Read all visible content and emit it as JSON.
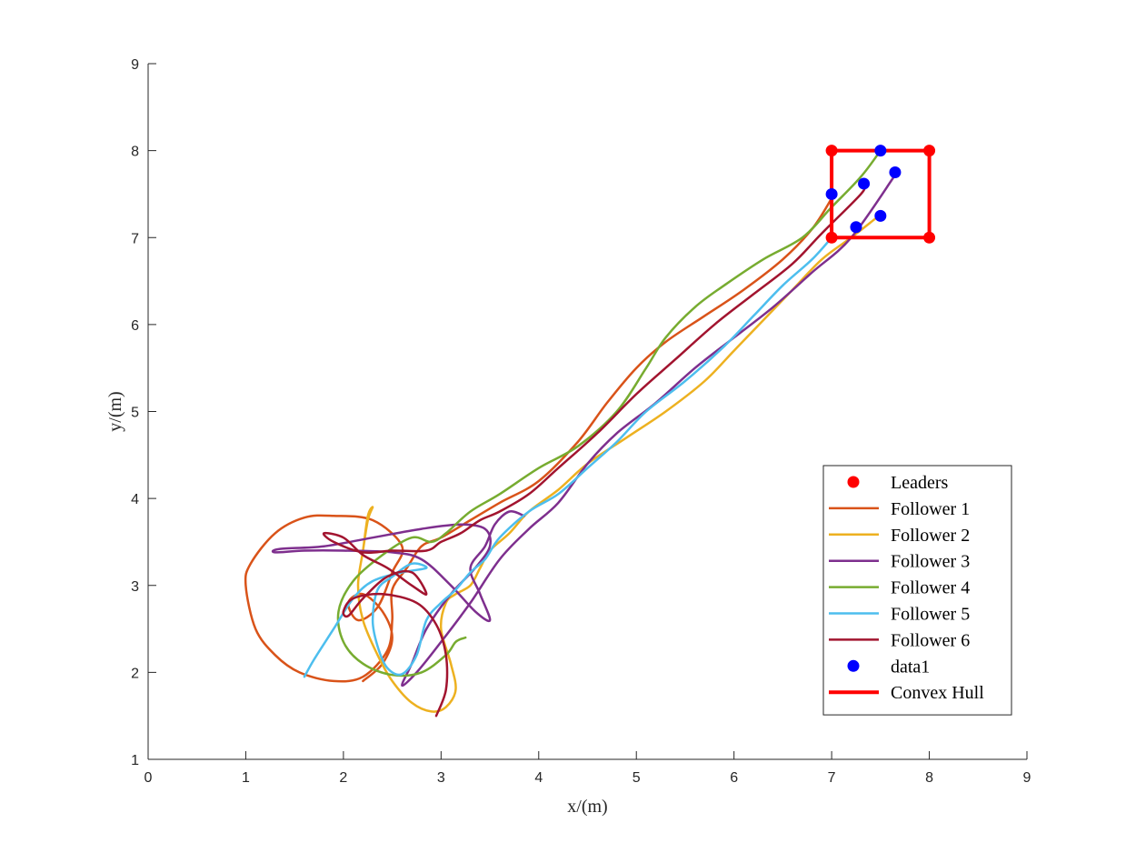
{
  "chart_data": {
    "type": "line",
    "title": "",
    "xlabel": "x/(m)",
    "ylabel": "y/(m)",
    "xlim": [
      0,
      9
    ],
    "ylim": [
      1,
      9
    ],
    "xticks": [
      "0",
      "1",
      "2",
      "3",
      "4",
      "5",
      "6",
      "7",
      "8",
      "9"
    ],
    "yticks": [
      "1",
      "2",
      "3",
      "4",
      "5",
      "6",
      "7",
      "8",
      "9"
    ],
    "grid": false,
    "legend_position": "bottom-right",
    "legend": [
      "Leaders",
      "Follower 1",
      "Follower 2",
      "Follower 3",
      "Follower 4",
      "Follower 5",
      "Follower 6",
      "data1",
      "Convex Hull"
    ],
    "leaders": {
      "name": "Leaders",
      "color": "#ff0000",
      "points": [
        [
          7,
          8
        ],
        [
          8,
          8
        ],
        [
          7,
          7
        ],
        [
          8,
          7
        ]
      ]
    },
    "data1": {
      "name": "data1",
      "color": "#0000ff",
      "points": [
        [
          7.5,
          8.0
        ],
        [
          7.65,
          7.75
        ],
        [
          7.33,
          7.62
        ],
        [
          7.0,
          7.5
        ],
        [
          7.5,
          7.25
        ],
        [
          7.25,
          7.12
        ]
      ]
    },
    "convex_hull": {
      "name": "Convex Hull",
      "color": "#ff0000",
      "points": [
        [
          7,
          7
        ],
        [
          8,
          7
        ],
        [
          8,
          8
        ],
        [
          7,
          8
        ],
        [
          7,
          7
        ]
      ]
    },
    "series": [
      {
        "name": "Follower 1",
        "color": "#d95319",
        "points": [
          [
            2.2,
            1.9
          ],
          [
            2.4,
            2.1
          ],
          [
            2.5,
            2.4
          ],
          [
            2.4,
            2.7
          ],
          [
            2.2,
            2.9
          ],
          [
            2.05,
            2.8
          ],
          [
            2.15,
            2.6
          ],
          [
            2.35,
            2.75
          ],
          [
            2.5,
            3.15
          ],
          [
            2.6,
            3.45
          ],
          [
            2.3,
            3.75
          ],
          [
            1.9,
            3.8
          ],
          [
            1.6,
            3.78
          ],
          [
            1.3,
            3.6
          ],
          [
            1.05,
            3.25
          ],
          [
            1.0,
            3.0
          ],
          [
            1.1,
            2.5
          ],
          [
            1.3,
            2.2
          ],
          [
            1.55,
            2.0
          ],
          [
            1.9,
            1.9
          ],
          [
            2.2,
            1.95
          ],
          [
            2.45,
            2.25
          ],
          [
            2.5,
            2.6
          ],
          [
            2.5,
            2.95
          ],
          [
            2.65,
            3.2
          ],
          [
            2.8,
            3.45
          ],
          [
            3.0,
            3.55
          ],
          [
            3.3,
            3.75
          ],
          [
            3.6,
            3.95
          ],
          [
            4.0,
            4.2
          ],
          [
            4.4,
            4.65
          ],
          [
            4.7,
            5.1
          ],
          [
            5.0,
            5.5
          ],
          [
            5.3,
            5.8
          ],
          [
            5.7,
            6.1
          ],
          [
            6.1,
            6.4
          ],
          [
            6.5,
            6.75
          ],
          [
            6.8,
            7.1
          ],
          [
            7.0,
            7.45
          ]
        ]
      },
      {
        "name": "Follower 2",
        "color": "#edb120",
        "points": [
          [
            2.2,
            3.4
          ],
          [
            2.25,
            3.75
          ],
          [
            2.3,
            3.9
          ],
          [
            2.25,
            3.8
          ],
          [
            2.2,
            3.4
          ],
          [
            2.15,
            3.0
          ],
          [
            2.2,
            2.6
          ],
          [
            2.35,
            2.2
          ],
          [
            2.5,
            1.9
          ],
          [
            2.7,
            1.65
          ],
          [
            2.9,
            1.55
          ],
          [
            3.05,
            1.6
          ],
          [
            3.15,
            1.8
          ],
          [
            3.1,
            2.1
          ],
          [
            3.0,
            2.5
          ],
          [
            3.05,
            2.8
          ],
          [
            3.15,
            2.9
          ],
          [
            3.3,
            3.0
          ],
          [
            3.4,
            3.2
          ],
          [
            3.5,
            3.4
          ],
          [
            3.7,
            3.6
          ],
          [
            3.9,
            3.85
          ],
          [
            4.2,
            4.1
          ],
          [
            4.5,
            4.4
          ],
          [
            4.9,
            4.7
          ],
          [
            5.3,
            5.0
          ],
          [
            5.7,
            5.35
          ],
          [
            6.0,
            5.7
          ],
          [
            6.3,
            6.05
          ],
          [
            6.6,
            6.4
          ],
          [
            6.9,
            6.75
          ],
          [
            7.2,
            7.0
          ],
          [
            7.45,
            7.22
          ]
        ]
      },
      {
        "name": "Follower 3",
        "color": "#7e2f8e",
        "points": [
          [
            3.85,
            3.8
          ],
          [
            3.7,
            3.85
          ],
          [
            3.55,
            3.7
          ],
          [
            3.45,
            3.45
          ],
          [
            3.3,
            3.2
          ],
          [
            3.4,
            2.9
          ],
          [
            3.5,
            2.6
          ],
          [
            3.35,
            2.7
          ],
          [
            3.1,
            3.0
          ],
          [
            2.8,
            3.3
          ],
          [
            2.5,
            3.38
          ],
          [
            2.0,
            3.4
          ],
          [
            1.6,
            3.4
          ],
          [
            1.3,
            3.38
          ],
          [
            1.35,
            3.42
          ],
          [
            1.8,
            3.45
          ],
          [
            2.3,
            3.55
          ],
          [
            2.8,
            3.65
          ],
          [
            3.2,
            3.7
          ],
          [
            3.45,
            3.65
          ],
          [
            3.5,
            3.45
          ],
          [
            3.35,
            3.2
          ],
          [
            3.1,
            2.9
          ],
          [
            2.85,
            2.5
          ],
          [
            2.7,
            2.1
          ],
          [
            2.6,
            1.85
          ],
          [
            2.75,
            2.0
          ],
          [
            3.0,
            2.35
          ],
          [
            3.3,
            2.8
          ],
          [
            3.6,
            3.3
          ],
          [
            3.9,
            3.65
          ],
          [
            4.2,
            3.95
          ],
          [
            4.5,
            4.4
          ],
          [
            4.8,
            4.75
          ],
          [
            5.2,
            5.1
          ],
          [
            5.6,
            5.5
          ],
          [
            6.0,
            5.85
          ],
          [
            6.4,
            6.2
          ],
          [
            6.8,
            6.6
          ],
          [
            7.2,
            7.0
          ],
          [
            7.65,
            7.72
          ]
        ]
      },
      {
        "name": "Follower 4",
        "color": "#77ac30",
        "points": [
          [
            3.25,
            2.4
          ],
          [
            3.15,
            2.35
          ],
          [
            3.05,
            2.2
          ],
          [
            2.8,
            2.0
          ],
          [
            2.5,
            1.97
          ],
          [
            2.2,
            2.1
          ],
          [
            2.0,
            2.35
          ],
          [
            1.95,
            2.7
          ],
          [
            2.1,
            3.05
          ],
          [
            2.4,
            3.35
          ],
          [
            2.7,
            3.55
          ],
          [
            2.9,
            3.5
          ],
          [
            3.05,
            3.6
          ],
          [
            3.3,
            3.85
          ],
          [
            3.6,
            4.05
          ],
          [
            4.0,
            4.35
          ],
          [
            4.4,
            4.6
          ],
          [
            4.8,
            5.0
          ],
          [
            5.1,
            5.5
          ],
          [
            5.3,
            5.85
          ],
          [
            5.6,
            6.2
          ],
          [
            5.9,
            6.45
          ],
          [
            6.3,
            6.75
          ],
          [
            6.7,
            7.0
          ],
          [
            7.0,
            7.35
          ],
          [
            7.3,
            7.7
          ],
          [
            7.5,
            8.0
          ]
        ]
      },
      {
        "name": "Follower 5",
        "color": "#4dbeee",
        "points": [
          [
            1.6,
            1.95
          ],
          [
            1.7,
            2.15
          ],
          [
            1.9,
            2.5
          ],
          [
            2.1,
            2.85
          ],
          [
            2.3,
            3.05
          ],
          [
            2.6,
            3.15
          ],
          [
            2.85,
            3.2
          ],
          [
            2.7,
            3.25
          ],
          [
            2.5,
            3.1
          ],
          [
            2.35,
            2.95
          ],
          [
            2.3,
            2.6
          ],
          [
            2.35,
            2.3
          ],
          [
            2.45,
            2.05
          ],
          [
            2.6,
            1.98
          ],
          [
            2.75,
            2.2
          ],
          [
            2.85,
            2.6
          ],
          [
            3.0,
            2.8
          ],
          [
            3.15,
            2.95
          ],
          [
            3.3,
            3.15
          ],
          [
            3.45,
            3.3
          ],
          [
            3.6,
            3.55
          ],
          [
            3.9,
            3.85
          ],
          [
            4.2,
            4.05
          ],
          [
            4.5,
            4.35
          ],
          [
            4.8,
            4.65
          ],
          [
            5.1,
            5.0
          ],
          [
            5.5,
            5.35
          ],
          [
            5.9,
            5.75
          ],
          [
            6.2,
            6.1
          ],
          [
            6.5,
            6.45
          ],
          [
            6.8,
            6.75
          ],
          [
            7.0,
            7.0
          ]
        ]
      },
      {
        "name": "Follower 6",
        "color": "#a2142f",
        "points": [
          [
            2.95,
            1.5
          ],
          [
            3.05,
            1.8
          ],
          [
            3.05,
            2.2
          ],
          [
            2.95,
            2.55
          ],
          [
            2.75,
            2.8
          ],
          [
            2.4,
            2.9
          ],
          [
            2.1,
            2.85
          ],
          [
            2.0,
            2.7
          ],
          [
            2.05,
            2.65
          ],
          [
            2.2,
            2.85
          ],
          [
            2.45,
            3.1
          ],
          [
            2.7,
            3.15
          ],
          [
            2.85,
            2.9
          ],
          [
            2.7,
            3.0
          ],
          [
            2.45,
            3.2
          ],
          [
            2.2,
            3.35
          ],
          [
            2.0,
            3.55
          ],
          [
            1.8,
            3.6
          ],
          [
            1.9,
            3.5
          ],
          [
            2.2,
            3.38
          ],
          [
            2.5,
            3.4
          ],
          [
            2.85,
            3.4
          ],
          [
            3.0,
            3.5
          ],
          [
            3.2,
            3.6
          ],
          [
            3.4,
            3.75
          ],
          [
            3.6,
            3.85
          ],
          [
            3.9,
            4.05
          ],
          [
            4.2,
            4.35
          ],
          [
            4.6,
            4.75
          ],
          [
            5.0,
            5.2
          ],
          [
            5.4,
            5.6
          ],
          [
            5.8,
            6.0
          ],
          [
            6.2,
            6.35
          ],
          [
            6.6,
            6.7
          ],
          [
            6.9,
            7.05
          ],
          [
            7.3,
            7.5
          ],
          [
            7.33,
            7.6
          ]
        ]
      }
    ]
  }
}
